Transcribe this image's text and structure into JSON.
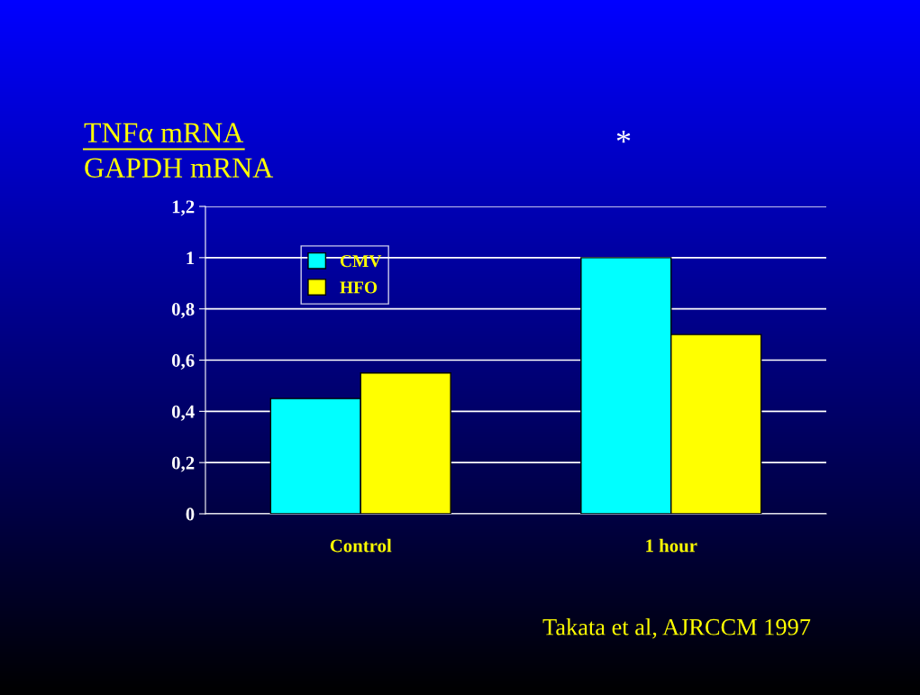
{
  "chart_data": {
    "type": "bar",
    "title": "TNFα mRNA",
    "subtitle": "GAPDH mRNA",
    "categories": [
      "Control",
      "1 hour"
    ],
    "series": [
      {
        "name": "CMV",
        "color": "#00ffff",
        "values": [
          0.45,
          1.0
        ]
      },
      {
        "name": "HFO",
        "color": "#ffff00",
        "values": [
          0.55,
          0.7
        ]
      }
    ],
    "ylim": [
      0,
      1.2
    ],
    "yticks": [
      {
        "value": 0,
        "label": "0"
      },
      {
        "value": 0.2,
        "label": "0,2"
      },
      {
        "value": 0.4,
        "label": "0,4"
      },
      {
        "value": 0.6,
        "label": "0,6"
      },
      {
        "value": 0.8,
        "label": "0,8"
      },
      {
        "value": 1,
        "label": "1"
      },
      {
        "value": 1.2,
        "label": "1,2"
      }
    ],
    "grid": "y",
    "legend": "top left",
    "annotations": [
      "*",
      "Takata et al, AJRCCM 1997"
    ]
  }
}
